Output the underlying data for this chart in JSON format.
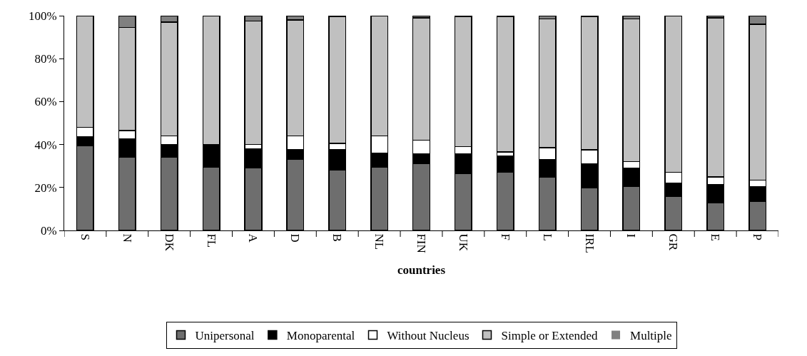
{
  "chart_data": {
    "type": "bar",
    "stacked": true,
    "xlabel": "countries",
    "categories": [
      "S",
      "N",
      "DK",
      "FL",
      "A",
      "D",
      "B",
      "NL",
      "FIN",
      "UK",
      "F",
      "L",
      "IRL",
      "I",
      "GR",
      "E",
      "P"
    ],
    "series": [
      {
        "name": "Unipersonal",
        "color": "#6e6e6e",
        "values": [
          39.5,
          34,
          34,
          29.5,
          29,
          33,
          28,
          29.5,
          31,
          26.5,
          27,
          25,
          20,
          20.5,
          16,
          13,
          13.5
        ]
      },
      {
        "name": "Monoparental",
        "color": "#000000",
        "values": [
          4,
          8.5,
          6,
          10.5,
          9,
          4.5,
          9.5,
          6.5,
          4.5,
          9,
          7.5,
          8,
          11,
          8.5,
          6,
          8.5,
          7
        ]
      },
      {
        "name": "Without Nucleus",
        "color": "#ffffff",
        "values": [
          4.5,
          4,
          4,
          0,
          2,
          6.5,
          3,
          8,
          6.5,
          3.5,
          2,
          5.5,
          6.5,
          3,
          5,
          3.5,
          3
        ]
      },
      {
        "name": "Simple or Extended",
        "color": "#c0c0c0",
        "values": [
          52,
          48,
          53,
          60,
          57.5,
          54,
          59,
          56,
          57,
          60.5,
          63,
          60,
          62,
          66.5,
          73,
          74,
          72.5
        ]
      },
      {
        "name": "Multiple",
        "color": "#808080",
        "values": [
          0,
          5.5,
          3,
          0,
          2.5,
          2,
          0.5,
          0,
          1,
          0.5,
          0.5,
          1.5,
          0.5,
          1.5,
          0,
          1,
          4
        ]
      }
    ],
    "ylim": [
      0,
      100
    ],
    "yticks": [
      {
        "value": 0,
        "label": "0%"
      },
      {
        "value": 20,
        "label": "20%"
      },
      {
        "value": 40,
        "label": "40%"
      },
      {
        "value": 60,
        "label": "60%"
      },
      {
        "value": 80,
        "label": "80%"
      },
      {
        "value": 100,
        "label": "100%"
      }
    ],
    "grid": false,
    "legend": "bottom"
  }
}
